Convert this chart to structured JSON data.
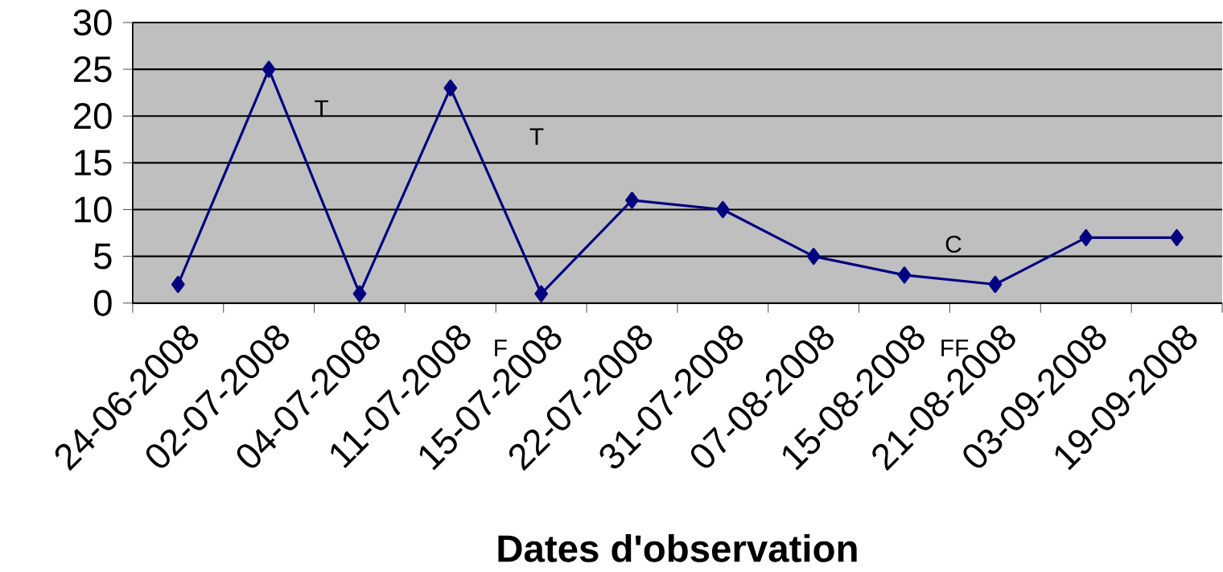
{
  "chart_data": {
    "type": "line",
    "xlabel": "Dates d'observation",
    "categories": [
      "24-06-2008",
      "02-07-2008",
      "04-07-2008",
      "11-07-2008",
      "15-07-2008",
      "22-07-2008",
      "31-07-2008",
      "07-08-2008",
      "15-08-2008",
      "21-08-2008",
      "03-09-2008",
      "19-09-2008"
    ],
    "values": [
      2,
      25,
      1,
      23,
      1,
      11,
      10,
      5,
      3,
      2,
      7,
      7
    ],
    "color": "#000080",
    "marker": "diamond",
    "line_style": "solid",
    "ylim": [
      0,
      30
    ],
    "yticks": [
      0,
      5,
      10,
      15,
      20,
      25,
      30
    ],
    "grid": "y",
    "annotations": [
      "T",
      "T",
      "F",
      "FF",
      "C"
    ]
  }
}
